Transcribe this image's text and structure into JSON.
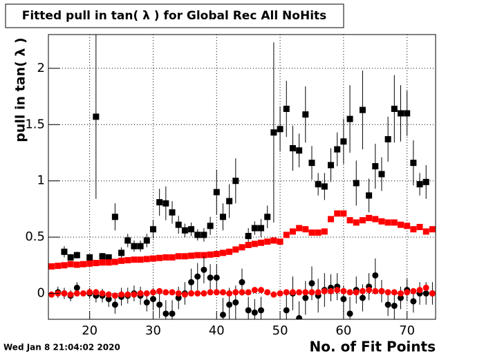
{
  "chart_data": {
    "type": "scatter",
    "title": "Fitted pull in tan( λ ) for Global Rec All NoHits",
    "x_label": "No. of Fit Points",
    "y_label": "pull in tan( λ )",
    "timestamp": "Wed Jan  8 21:04:02 2020",
    "xlim": [
      13.5,
      74.5
    ],
    "ylim": [
      -0.23,
      2.3
    ],
    "xticks": [
      20,
      30,
      40,
      50,
      60,
      70
    ],
    "yticks": [
      0,
      0.5,
      1,
      1.5,
      2
    ],
    "grid": true,
    "x": [
      14,
      15,
      16,
      17,
      18,
      19,
      20,
      21,
      22,
      23,
      24,
      25,
      26,
      27,
      28,
      29,
      30,
      31,
      32,
      33,
      34,
      35,
      36,
      37,
      38,
      39,
      40,
      41,
      42,
      43,
      44,
      45,
      46,
      47,
      48,
      49,
      50,
      51,
      52,
      53,
      54,
      55,
      56,
      57,
      58,
      59,
      60,
      61,
      62,
      63,
      64,
      65,
      66,
      67,
      68,
      69,
      70,
      71,
      72,
      73,
      74
    ],
    "series": [
      {
        "color": "#000000",
        "marker": "square",
        "values": [
          null,
          null,
          0.37,
          0.32,
          0.34,
          null,
          0.32,
          1.57,
          0.33,
          0.32,
          0.68,
          0.36,
          0.47,
          0.42,
          0.42,
          0.47,
          0.57,
          0.81,
          0.8,
          0.72,
          0.61,
          0.56,
          0.57,
          0.52,
          0.52,
          0.6,
          0.9,
          0.68,
          0.82,
          1.0,
          null,
          0.51,
          0.58,
          0.58,
          0.68,
          1.43,
          1.46,
          1.64,
          1.29,
          1.27,
          1.59,
          1.16,
          0.97,
          0.95,
          1.14,
          1.28,
          1.35,
          1.55,
          0.98,
          1.63,
          0.87,
          1.13,
          1.06,
          1.37,
          1.64,
          1.6,
          1.6,
          1.16,
          0.97,
          0.99,
          null
        ],
        "errors": [
          null,
          null,
          0.05,
          0.03,
          0.03,
          null,
          0.03,
          0.73,
          0.03,
          0.03,
          0.12,
          0.05,
          0.06,
          0.05,
          0.05,
          0.06,
          0.08,
          0.12,
          0.15,
          0.1,
          0.08,
          0.06,
          0.06,
          0.05,
          0.06,
          0.08,
          0.2,
          0.12,
          0.15,
          0.2,
          null,
          0.07,
          0.06,
          0.08,
          0.1,
          0.8,
          0.2,
          0.25,
          0.2,
          0.15,
          0.25,
          0.15,
          0.1,
          0.12,
          0.15,
          0.15,
          0.2,
          0.3,
          0.2,
          0.35,
          0.15,
          0.2,
          0.15,
          0.2,
          0.3,
          0.25,
          0.2,
          0.2,
          0.1,
          0.15,
          null
        ]
      },
      {
        "color": "#ff0000",
        "marker": "square",
        "values": [
          0.24,
          0.245,
          0.25,
          0.26,
          0.255,
          0.26,
          0.265,
          0.27,
          0.275,
          0.275,
          0.28,
          0.29,
          0.295,
          0.3,
          0.3,
          0.305,
          0.31,
          0.315,
          0.32,
          0.32,
          0.33,
          0.33,
          0.335,
          0.34,
          0.34,
          0.345,
          0.35,
          0.36,
          0.37,
          0.39,
          0.41,
          0.43,
          0.44,
          0.45,
          0.46,
          0.47,
          0.46,
          0.52,
          0.55,
          0.58,
          0.57,
          0.54,
          0.54,
          0.55,
          0.66,
          0.71,
          0.71,
          0.65,
          0.63,
          0.65,
          0.67,
          0.66,
          0.64,
          0.63,
          0.63,
          0.61,
          0.6,
          0.57,
          0.59,
          0.55,
          0.57
        ]
      },
      {
        "color": "#000000",
        "marker": "circle",
        "values": [
          null,
          0.01,
          0,
          -0.02,
          0.05,
          null,
          0,
          -0.02,
          -0.02,
          -0.05,
          -0.1,
          -0.03,
          -0.02,
          0,
          -0.02,
          -0.08,
          -0.05,
          -0.1,
          -0.18,
          -0.18,
          -0.04,
          0,
          0.1,
          0.15,
          0.21,
          0.14,
          0.14,
          -0.19,
          -0.1,
          -0.08,
          0.1,
          -0.15,
          -0.17,
          -0.15,
          null,
          null,
          null,
          -0.15,
          0,
          -0.22,
          -0.04,
          0.09,
          -0.02,
          0.03,
          0.05,
          0.06,
          -0.05,
          -0.18,
          0.03,
          -0.04,
          0.06,
          0.16,
          0.02,
          -0.1,
          -0.11,
          -0.04,
          0.03,
          -0.07,
          0,
          0,
          0
        ],
        "errors": [
          null,
          0.05,
          0.05,
          0.05,
          0.05,
          null,
          0.05,
          0.06,
          0.06,
          0.07,
          0.08,
          0.08,
          0.07,
          0.07,
          0.08,
          0.08,
          0.1,
          0.12,
          0.12,
          0.12,
          0.1,
          0.1,
          0.12,
          0.12,
          0.12,
          0.12,
          0.12,
          0.15,
          0.15,
          0.15,
          0.12,
          0.12,
          0.12,
          0.12,
          null,
          null,
          null,
          0.15,
          0.15,
          0.15,
          0.15,
          0.15,
          0.15,
          0.15,
          0.12,
          0.12,
          0.12,
          0.15,
          0.12,
          0.12,
          0.12,
          0.15,
          0.1,
          0.1,
          0.12,
          0.1,
          0.1,
          0.1,
          0.1,
          0.1,
          0.1
        ]
      },
      {
        "color": "#ff0000",
        "marker": "circle",
        "values": [
          -0.01,
          0,
          0,
          -0.01,
          0,
          0,
          0.01,
          0.01,
          0,
          -0.01,
          -0.02,
          -0.01,
          -0.01,
          -0.01,
          0,
          0,
          0.01,
          0.02,
          0.01,
          0.01,
          0,
          -0.01,
          0,
          0,
          0,
          0.01,
          0.01,
          0.01,
          0,
          0.01,
          0.01,
          0.01,
          0.03,
          0.03,
          0.01,
          -0.01,
          0,
          0.01,
          0.01,
          0.01,
          0.01,
          0.01,
          0.01,
          0.02,
          0.02,
          0.03,
          0.02,
          0.01,
          0.01,
          0.02,
          0.03,
          0.02,
          0.02,
          0.01,
          0.01,
          0,
          0.01,
          0.02,
          0.03,
          0.05,
          0
        ]
      }
    ]
  }
}
